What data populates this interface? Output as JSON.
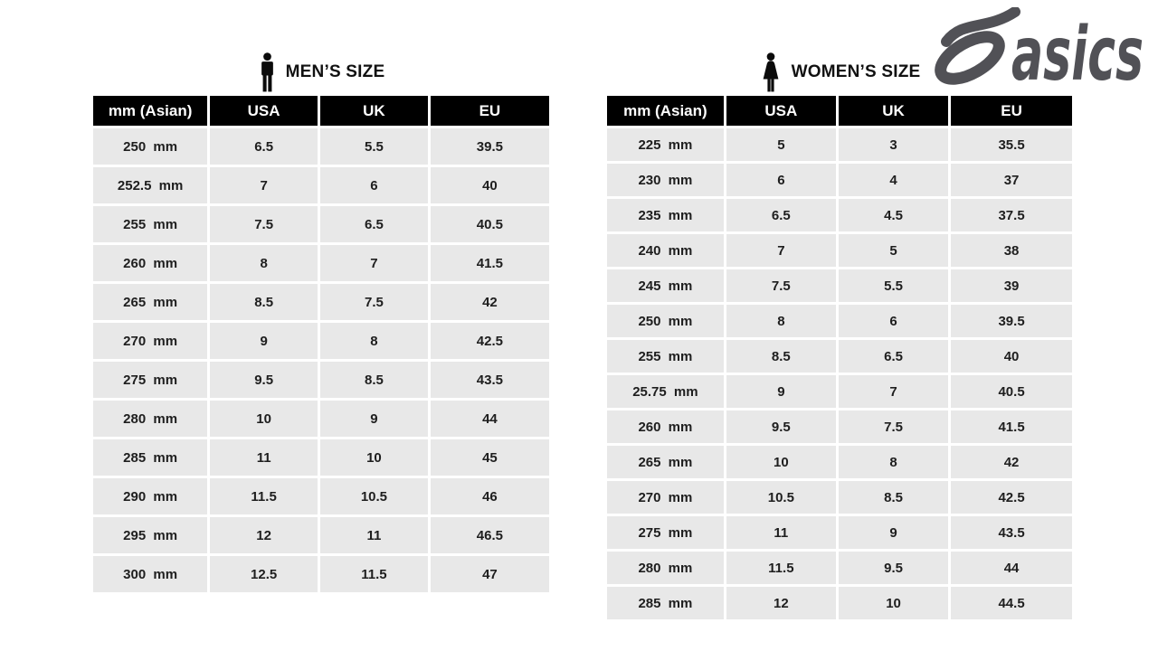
{
  "brand": {
    "wordmark": "asics"
  },
  "colors": {
    "header_bg": "#000000",
    "header_text": "#ffffff",
    "row_bg": "#e8e8e8",
    "body_text": "#1e1e1e",
    "logo_gray": "#515156",
    "page_bg": "#ffffff"
  },
  "chart_data": [
    {
      "type": "table",
      "title": "MEN’S SIZE",
      "columns": [
        "mm (Asian)",
        "USA",
        "UK",
        "EU"
      ],
      "rows": [
        [
          "250 mm",
          "6.5",
          "5.5",
          "39.5"
        ],
        [
          "252.5 mm",
          "7",
          "6",
          "40"
        ],
        [
          "255 mm",
          "7.5",
          "6.5",
          "40.5"
        ],
        [
          "260 mm",
          "8",
          "7",
          "41.5"
        ],
        [
          "265 mm",
          "8.5",
          "7.5",
          "42"
        ],
        [
          "270 mm",
          "9",
          "8",
          "42.5"
        ],
        [
          "275 mm",
          "9.5",
          "8.5",
          "43.5"
        ],
        [
          "280 mm",
          "10",
          "9",
          "44"
        ],
        [
          "285 mm",
          "11",
          "10",
          "45"
        ],
        [
          "290 mm",
          "11.5",
          "10.5",
          "46"
        ],
        [
          "295 mm",
          "12",
          "11",
          "46.5"
        ],
        [
          "300 mm",
          "12.5",
          "11.5",
          "47"
        ]
      ]
    },
    {
      "type": "table",
      "title": "WOMEN’S SIZE",
      "columns": [
        "mm (Asian)",
        "USA",
        "UK",
        "EU"
      ],
      "rows": [
        [
          "225 mm",
          "5",
          "3",
          "35.5"
        ],
        [
          "230 mm",
          "6",
          "4",
          "37"
        ],
        [
          "235 mm",
          "6.5",
          "4.5",
          "37.5"
        ],
        [
          "240 mm",
          "7",
          "5",
          "38"
        ],
        [
          "245 mm",
          "7.5",
          "5.5",
          "39"
        ],
        [
          "250 mm",
          "8",
          "6",
          "39.5"
        ],
        [
          "255 mm",
          "8.5",
          "6.5",
          "40"
        ],
        [
          "25.75 mm",
          "9",
          "7",
          "40.5"
        ],
        [
          "260 mm",
          "9.5",
          "7.5",
          "41.5"
        ],
        [
          "265 mm",
          "10",
          "8",
          "42"
        ],
        [
          "270 mm",
          "10.5",
          "8.5",
          "42.5"
        ],
        [
          "275 mm",
          "11",
          "9",
          "43.5"
        ],
        [
          "280 mm",
          "11.5",
          "9.5",
          "44"
        ],
        [
          "285 mm",
          "12",
          "10",
          "44.5"
        ]
      ]
    }
  ],
  "layout": {
    "column_widths": [
      "25.5%",
      "24%",
      "24%",
      "26.5%"
    ]
  }
}
